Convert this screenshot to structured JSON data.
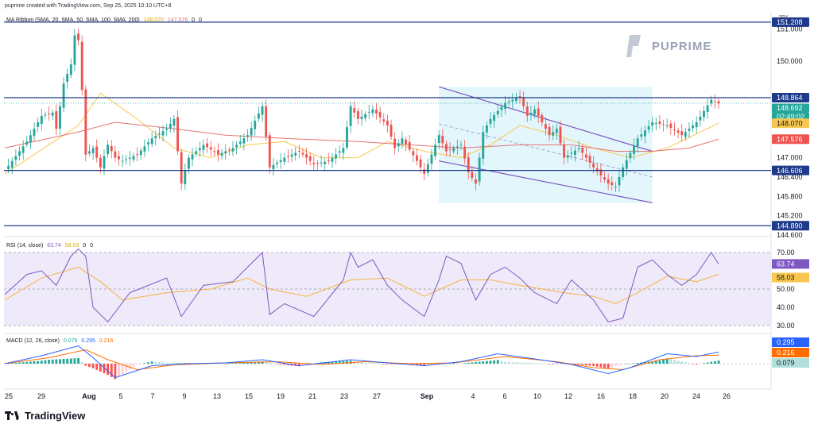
{
  "header": {
    "credit": "puprime created with TradingView.com, Sep 25, 2025 10:10 UTC+8",
    "main_indicator": {
      "name": "MA Ribbon (SMA, 20, SMA, 50, SMA, 100, SMA, 200)",
      "v1": "148.070",
      "v2": "147.576",
      "v3": "0",
      "v4": "0"
    },
    "rsi_label": {
      "name": "RSI (14, close)",
      "v1": "63.74",
      "v2": "58.03",
      "v3": "0",
      "v4": "0"
    },
    "macd_label": {
      "name": "MACD (12, 26, close)",
      "v1": "0.079",
      "v2": "0.295",
      "v3": "0.216"
    }
  },
  "watermark": "PUPRIME",
  "footer": {
    "logo_text": "TradingView"
  },
  "colors": {
    "up": "#26a69a",
    "down": "#ef5350",
    "level": "#1e3a8a",
    "sma_fast": "#f9c74f",
    "sma_slow": "#e57373",
    "channel": "#7e57c2",
    "rsi": "#7e57c2",
    "rsi_ma": "#f5b342",
    "macd": "#2962ff",
    "signal": "#ff6d00"
  },
  "chart_data": {
    "type": "candlestick",
    "symbol_currency": "JPY",
    "x_tick_labels": [
      "25",
      "29",
      "Aug",
      "5",
      "7",
      "9",
      "13",
      "15",
      "19",
      "21",
      "23",
      "27",
      "Sep",
      "4",
      "6",
      "10",
      "12",
      "16",
      "18",
      "20",
      "24",
      "26"
    ],
    "y_axis_ticks": [
      "151.000",
      "150.000",
      "147.000",
      "146.400",
      "145.800",
      "145.200",
      "144.600"
    ],
    "ylim": [
      144.6,
      151.5
    ],
    "horizontal_levels": [
      151.208,
      148.864,
      146.606,
      144.89
    ],
    "price_labels": [
      {
        "text": "151.208",
        "style": "level"
      },
      {
        "text": "148.864",
        "style": "level"
      },
      {
        "text": "148.692",
        "style": "last"
      },
      {
        "text": "02:49:02",
        "style": "last"
      },
      {
        "text": "148.070",
        "style": "fast"
      },
      {
        "text": "147.576",
        "style": "slow"
      },
      {
        "text": "146.606",
        "style": "level"
      },
      {
        "text": "144.890",
        "style": "level"
      }
    ],
    "close_path": [
      [
        0,
        146.6
      ],
      [
        6,
        147.5
      ],
      [
        10,
        148.3
      ],
      [
        13,
        148.4
      ],
      [
        14,
        147.9
      ],
      [
        16,
        149.3
      ],
      [
        18,
        149.9
      ],
      [
        19,
        150.8
      ],
      [
        20,
        150.65
      ],
      [
        21,
        149.1
      ],
      [
        22,
        147.1
      ],
      [
        24,
        147.3
      ],
      [
        26,
        146.7
      ],
      [
        28,
        147.4
      ],
      [
        30,
        147.0
      ],
      [
        32,
        146.9
      ],
      [
        36,
        147.1
      ],
      [
        40,
        147.6
      ],
      [
        44,
        147.9
      ],
      [
        46,
        148.2
      ],
      [
        48,
        146.2
      ],
      [
        50,
        147.0
      ],
      [
        54,
        147.4
      ],
      [
        58,
        147.1
      ],
      [
        62,
        147.3
      ],
      [
        66,
        147.7
      ],
      [
        70,
        148.6
      ],
      [
        72,
        146.7
      ],
      [
        76,
        147.0
      ],
      [
        80,
        147.2
      ],
      [
        84,
        146.8
      ],
      [
        88,
        146.9
      ],
      [
        92,
        147.3
      ],
      [
        94,
        148.6
      ],
      [
        96,
        148.2
      ],
      [
        100,
        148.5
      ],
      [
        104,
        148.0
      ],
      [
        106,
        147.3
      ],
      [
        108,
        147.6
      ],
      [
        112,
        146.9
      ],
      [
        114,
        146.5
      ],
      [
        118,
        147.7
      ],
      [
        120,
        147.2
      ],
      [
        124,
        147.4
      ],
      [
        126,
        146.55
      ],
      [
        128,
        146.2
      ],
      [
        130,
        147.8
      ],
      [
        132,
        148.2
      ],
      [
        136,
        148.7
      ],
      [
        140,
        148.9
      ],
      [
        142,
        148.3
      ],
      [
        144,
        148.5
      ],
      [
        146,
        148.1
      ],
      [
        148,
        147.7
      ],
      [
        150,
        147.9
      ],
      [
        152,
        147.0
      ],
      [
        156,
        147.3
      ],
      [
        160,
        146.7
      ],
      [
        164,
        146.2
      ],
      [
        166,
        146.1
      ],
      [
        168,
        146.7
      ],
      [
        172,
        147.6
      ],
      [
        176,
        148.1
      ],
      [
        180,
        148.0
      ],
      [
        184,
        147.7
      ],
      [
        188,
        148.1
      ],
      [
        192,
        148.8
      ],
      [
        194,
        148.69
      ]
    ],
    "sma_fast": [
      [
        0,
        146.5
      ],
      [
        20,
        148.0
      ],
      [
        26,
        149.0
      ],
      [
        36,
        148.2
      ],
      [
        46,
        147.3
      ],
      [
        56,
        147.0
      ],
      [
        66,
        147.4
      ],
      [
        76,
        147.5
      ],
      [
        86,
        147.0
      ],
      [
        96,
        147.0
      ],
      [
        104,
        147.5
      ],
      [
        114,
        147.2
      ],
      [
        124,
        147.0
      ],
      [
        132,
        147.4
      ],
      [
        140,
        148.0
      ],
      [
        150,
        147.7
      ],
      [
        160,
        147.3
      ],
      [
        170,
        147.0
      ],
      [
        180,
        147.3
      ],
      [
        194,
        148.07
      ]
    ],
    "sma_slow": [
      [
        0,
        147.3
      ],
      [
        20,
        147.8
      ],
      [
        30,
        148.1
      ],
      [
        46,
        147.9
      ],
      [
        60,
        147.7
      ],
      [
        76,
        147.6
      ],
      [
        96,
        147.5
      ],
      [
        110,
        147.4
      ],
      [
        124,
        147.3
      ],
      [
        140,
        147.4
      ],
      [
        154,
        147.4
      ],
      [
        166,
        147.2
      ],
      [
        176,
        147.2
      ],
      [
        186,
        147.3
      ],
      [
        194,
        147.576
      ]
    ],
    "channel": {
      "upper": [
        [
          118,
          149.2
        ],
        [
          176,
          147.2
        ]
      ],
      "lower": [
        [
          118,
          146.9
        ],
        [
          176,
          145.6
        ]
      ],
      "mid": [
        [
          118,
          148.05
        ],
        [
          176,
          146.4
        ]
      ]
    },
    "rsi": {
      "ylim": [
        30,
        70
      ],
      "ticks": [
        "70.00",
        "50.00",
        "40.00",
        "30.00"
      ],
      "value": "63.74",
      "ma_value": "58.03",
      "line": [
        [
          0,
          47
        ],
        [
          6,
          58
        ],
        [
          10,
          60
        ],
        [
          14,
          52
        ],
        [
          18,
          68
        ],
        [
          20,
          72
        ],
        [
          22,
          68
        ],
        [
          24,
          40
        ],
        [
          28,
          32
        ],
        [
          34,
          48
        ],
        [
          44,
          56
        ],
        [
          48,
          35
        ],
        [
          54,
          52
        ],
        [
          62,
          54
        ],
        [
          66,
          62
        ],
        [
          70,
          70
        ],
        [
          72,
          36
        ],
        [
          76,
          42
        ],
        [
          84,
          35
        ],
        [
          92,
          55
        ],
        [
          94,
          70
        ],
        [
          96,
          62
        ],
        [
          100,
          66
        ],
        [
          104,
          52
        ],
        [
          108,
          44
        ],
        [
          114,
          35
        ],
        [
          118,
          55
        ],
        [
          120,
          68
        ],
        [
          124,
          64
        ],
        [
          128,
          44
        ],
        [
          132,
          58
        ],
        [
          136,
          62
        ],
        [
          140,
          56
        ],
        [
          144,
          48
        ],
        [
          150,
          42
        ],
        [
          154,
          55
        ],
        [
          160,
          44
        ],
        [
          164,
          32
        ],
        [
          168,
          34
        ],
        [
          172,
          62
        ],
        [
          176,
          66
        ],
        [
          180,
          58
        ],
        [
          184,
          52
        ],
        [
          188,
          58
        ],
        [
          192,
          70
        ],
        [
          194,
          63.74
        ]
      ],
      "ma": [
        [
          0,
          44
        ],
        [
          10,
          56
        ],
        [
          20,
          62
        ],
        [
          26,
          54
        ],
        [
          32,
          44
        ],
        [
          44,
          48
        ],
        [
          56,
          50
        ],
        [
          66,
          56
        ],
        [
          72,
          50
        ],
        [
          82,
          46
        ],
        [
          94,
          55
        ],
        [
          104,
          56
        ],
        [
          114,
          46
        ],
        [
          124,
          55
        ],
        [
          132,
          55
        ],
        [
          140,
          52
        ],
        [
          152,
          48
        ],
        [
          160,
          46
        ],
        [
          166,
          42
        ],
        [
          172,
          48
        ],
        [
          180,
          57
        ],
        [
          188,
          54
        ],
        [
          194,
          58.03
        ]
      ]
    },
    "macd": {
      "ylim": [
        -0.6,
        0.6
      ],
      "macd_value": "0.295",
      "signal_value": "0.216",
      "hist_value": "0.079",
      "macd_line": [
        [
          0,
          0.0
        ],
        [
          10,
          0.2
        ],
        [
          20,
          0.45
        ],
        [
          24,
          0.15
        ],
        [
          30,
          -0.35
        ],
        [
          40,
          -0.05
        ],
        [
          50,
          0.0
        ],
        [
          60,
          0.02
        ],
        [
          70,
          0.1
        ],
        [
          80,
          -0.05
        ],
        [
          94,
          0.1
        ],
        [
          104,
          0.02
        ],
        [
          114,
          -0.05
        ],
        [
          124,
          0.05
        ],
        [
          134,
          0.25
        ],
        [
          144,
          0.12
        ],
        [
          154,
          -0.02
        ],
        [
          164,
          -0.25
        ],
        [
          170,
          -0.1
        ],
        [
          180,
          0.25
        ],
        [
          188,
          0.18
        ],
        [
          194,
          0.295
        ]
      ],
      "signal_line": [
        [
          0,
          0.0
        ],
        [
          12,
          0.15
        ],
        [
          22,
          0.35
        ],
        [
          28,
          0.1
        ],
        [
          36,
          -0.15
        ],
        [
          46,
          -0.03
        ],
        [
          60,
          0.02
        ],
        [
          74,
          0.05
        ],
        [
          86,
          -0.02
        ],
        [
          98,
          0.05
        ],
        [
          110,
          0.0
        ],
        [
          122,
          0.02
        ],
        [
          136,
          0.18
        ],
        [
          150,
          0.05
        ],
        [
          160,
          -0.1
        ],
        [
          168,
          -0.15
        ],
        [
          178,
          0.1
        ],
        [
          188,
          0.2
        ],
        [
          194,
          0.216
        ]
      ]
    }
  }
}
